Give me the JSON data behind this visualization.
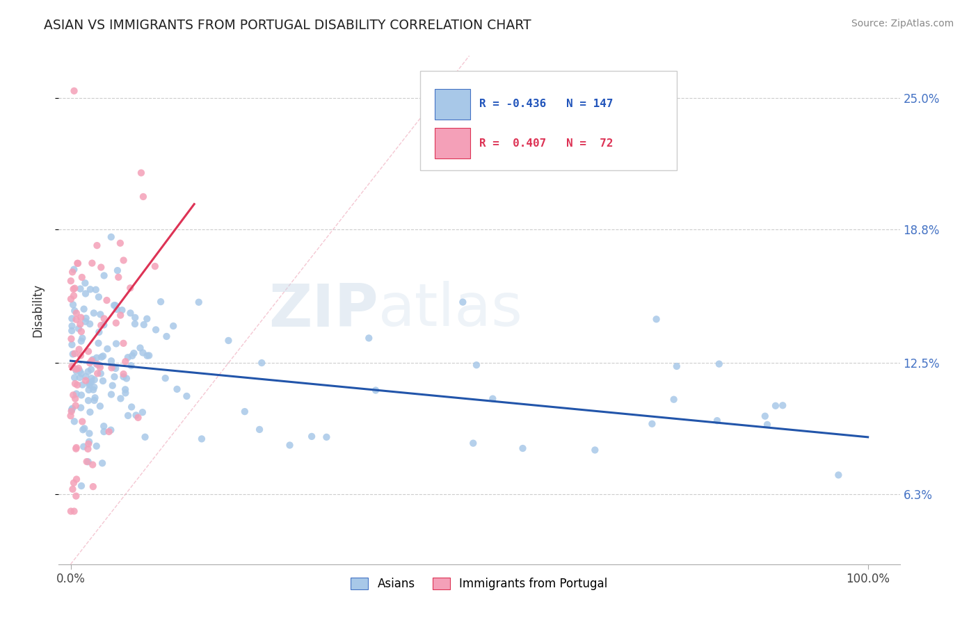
{
  "title": "ASIAN VS IMMIGRANTS FROM PORTUGAL DISABILITY CORRELATION CHART",
  "source": "Source: ZipAtlas.com",
  "ylabel": "Disability",
  "watermark": "ZIPatlas",
  "ylim": [
    0.03,
    0.27
  ],
  "ytick_vals": [
    0.063,
    0.125,
    0.188,
    0.25
  ],
  "ytick_labels": [
    "6.3%",
    "12.5%",
    "18.8%",
    "25.0%"
  ],
  "xtick_vals": [
    0.0,
    1.0
  ],
  "xtick_labels": [
    "0.0%",
    "100.0%"
  ],
  "legend_blue_r": "-0.436",
  "legend_blue_n": "147",
  "legend_pink_r": "0.407",
  "legend_pink_n": "72",
  "blue_color": "#a8c8e8",
  "pink_color": "#f4a0b8",
  "trend_blue_color": "#2255aa",
  "trend_pink_color": "#dd3355",
  "legend_label_blue": "Asians",
  "legend_label_pink": "Immigrants from Portugal",
  "blue_trend_x": [
    0.0,
    1.0
  ],
  "blue_trend_y": [
    0.126,
    0.09
  ],
  "pink_trend_x": [
    0.0,
    0.155
  ],
  "pink_trend_y": [
    0.122,
    0.2
  ]
}
